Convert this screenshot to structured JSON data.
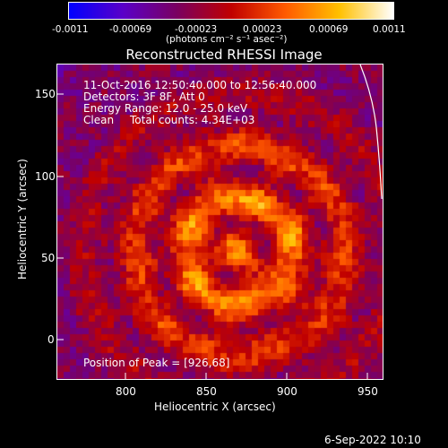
{
  "colorbar": {
    "ticks": [
      "-0.0011",
      "-0.00069",
      "-0.00023",
      "0.00023",
      "0.00069",
      "0.0011"
    ],
    "units": "(photons cm⁻² s⁻¹ asec⁻²)",
    "colors": [
      "#0000ff",
      "#5a00c8",
      "#7a0060",
      "#c00000",
      "#ff5a00",
      "#ffc000",
      "#ffffff"
    ]
  },
  "title": "Reconstructed RHESSI Image",
  "info": {
    "line1": "11-Oct-2016 12:50:40.000 to 12:56:40.000",
    "line2": "Detectors: 3F 8F, Att 0",
    "line3": "Energy Range: 12.0 - 25.0 keV",
    "line4_label": "Clean",
    "line4_counts": "Total counts: 4.34E+03",
    "peak": "Position of Peak = [926,68]"
  },
  "axes": {
    "xlabel": "Heliocentric X (arcsec)",
    "ylabel": "Heliocentric Y (arcsec)",
    "xticks": [
      "800",
      "850",
      "900",
      "950"
    ],
    "yticks": [
      "150",
      "100",
      "50",
      "0"
    ],
    "xlim": [
      765,
      958
    ],
    "ylim": [
      -24,
      173
    ]
  },
  "timestamp": "6-Sep-2022 10:10"
}
